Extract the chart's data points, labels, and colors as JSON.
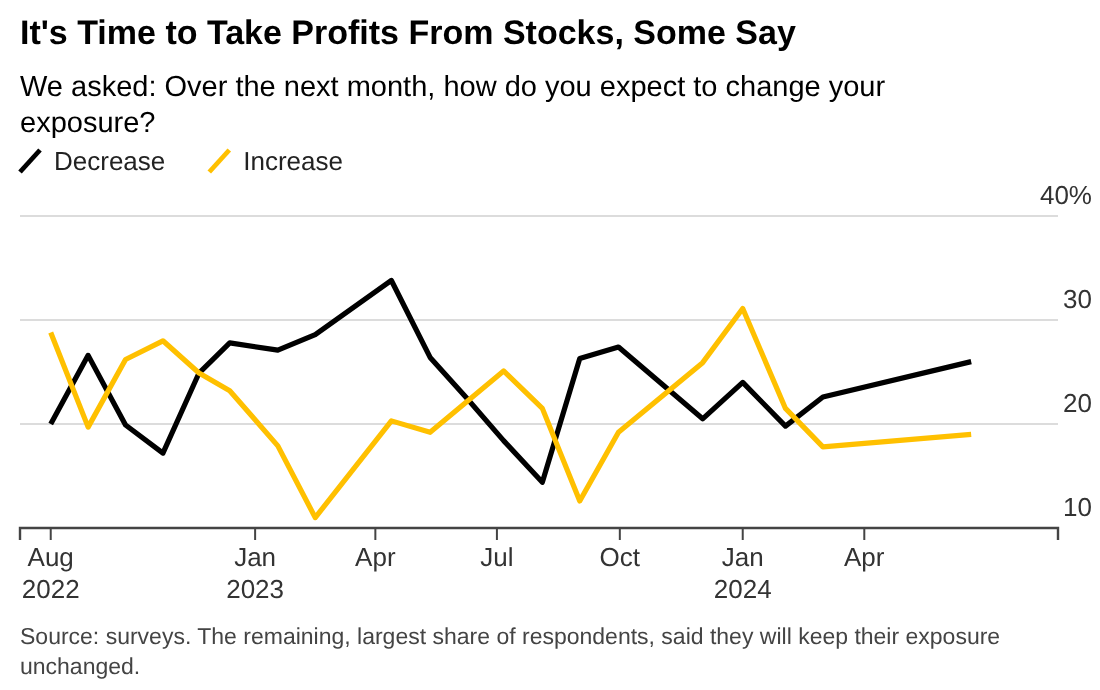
{
  "chart_data": {
    "type": "line",
    "title": "It's Time to Take Profits From Stocks, Some Say",
    "subtitle": "We asked: Over the next month, how do you expect to change your exposure?",
    "annotations": [
      "Source: surveys. The remaining, largest share of respondents, said they will keep their exposure unchanged."
    ],
    "series": [
      {
        "name": "Decrease",
        "color": "#000000",
        "x": [
          "2022-08-01",
          "2022-08-29",
          "2022-09-26",
          "2022-10-24",
          "2022-11-20",
          "2022-12-13",
          "2023-01-18",
          "2023-02-15",
          "2023-04-13",
          "2023-05-12",
          "2023-06-09",
          "2023-07-06",
          "2023-08-04",
          "2023-09-01",
          "2023-09-30",
          "2023-12-02",
          "2024-01-01",
          "2024-02-02",
          "2024-03-01",
          "2024-06-20"
        ],
        "values": [
          20,
          26.6,
          19.9,
          17.2,
          24.9,
          27.8,
          27.1,
          28.6,
          33.8,
          26.4,
          22.4,
          18.4,
          14.4,
          26.3,
          27.4,
          20.5,
          24,
          19.8,
          22.6,
          26
        ]
      },
      {
        "name": "Increase",
        "color": "#ffc000",
        "x": [
          "2022-08-01",
          "2022-08-29",
          "2022-09-26",
          "2022-10-24",
          "2022-11-20",
          "2022-12-13",
          "2023-01-18",
          "2023-02-15",
          "2023-04-13",
          "2023-05-12",
          "2023-07-06",
          "2023-08-04",
          "2023-09-01",
          "2023-09-30",
          "2023-12-02",
          "2024-01-01",
          "2024-02-02",
          "2024-03-01",
          "2024-06-20"
        ],
        "values": [
          28.8,
          19.7,
          26.2,
          28,
          24.9,
          23.2,
          17.9,
          11,
          20.3,
          19.2,
          25.1,
          21.5,
          12.6,
          19.2,
          25.9,
          31.1,
          21.5,
          17.8,
          19
        ]
      }
    ],
    "xlim": [
      "2022-07-09",
      "2024-08-24"
    ],
    "xticks": [
      {
        "value": "2022-08-01",
        "label": "Aug 2022"
      },
      {
        "value": "2023-01-01",
        "label": "Jan 2023"
      },
      {
        "value": "2023-04-01",
        "label": "Apr"
      },
      {
        "value": "2023-07-01",
        "label": "Jul"
      },
      {
        "value": "2023-10-01",
        "label": "Oct"
      },
      {
        "value": "2024-01-01",
        "label": "Jan 2024"
      },
      {
        "value": "2024-04-01",
        "label": "Apr"
      }
    ],
    "ylim": [
      10,
      40
    ],
    "yticks": [
      10,
      20,
      30,
      {
        "value": 40,
        "label": "40%"
      }
    ],
    "grid": "y",
    "legend": "top left",
    "marker": "none",
    "line_style": "solid"
  }
}
